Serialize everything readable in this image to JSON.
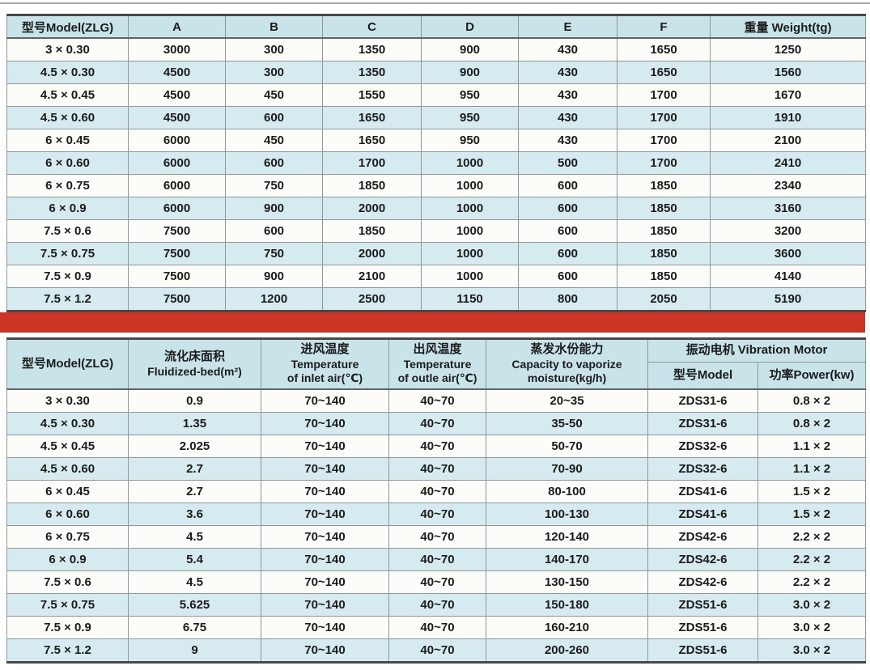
{
  "colors": {
    "header_bg": "#c8e4e9",
    "row_even_bg": "#d5ebef",
    "row_odd_bg": "#fcfcf8",
    "red_divider": "#cc3426",
    "border_dark": "#484848",
    "border_light": "#8f9898",
    "text": "#1b1b1b"
  },
  "table1": {
    "columns": [
      "型号Model(ZLG)",
      "A",
      "B",
      "C",
      "D",
      "E",
      "F",
      "重量 Weight(tg)"
    ],
    "rows": [
      [
        "3 × 0.30",
        "3000",
        "300",
        "1350",
        "900",
        "430",
        "1650",
        "1250"
      ],
      [
        "4.5 × 0.30",
        "4500",
        "300",
        "1350",
        "900",
        "430",
        "1650",
        "1560"
      ],
      [
        "4.5 × 0.45",
        "4500",
        "450",
        "1550",
        "950",
        "430",
        "1700",
        "1670"
      ],
      [
        "4.5 × 0.60",
        "4500",
        "600",
        "1650",
        "950",
        "430",
        "1700",
        "1910"
      ],
      [
        "6 × 0.45",
        "6000",
        "450",
        "1650",
        "950",
        "430",
        "1700",
        "2100"
      ],
      [
        "6 × 0.60",
        "6000",
        "600",
        "1700",
        "1000",
        "500",
        "1700",
        "2410"
      ],
      [
        "6 × 0.75",
        "6000",
        "750",
        "1850",
        "1000",
        "600",
        "1850",
        "2340"
      ],
      [
        "6 × 0.9",
        "6000",
        "900",
        "2000",
        "1000",
        "600",
        "1850",
        "3160"
      ],
      [
        "7.5 × 0.6",
        "7500",
        "600",
        "1850",
        "1000",
        "600",
        "1850",
        "3200"
      ],
      [
        "7.5 × 0.75",
        "7500",
        "750",
        "2000",
        "1000",
        "600",
        "1850",
        "3600"
      ],
      [
        "7.5 × 0.9",
        "7500",
        "900",
        "2100",
        "1000",
        "600",
        "1850",
        "4140"
      ],
      [
        "7.5 × 1.2",
        "7500",
        "1200",
        "2500",
        "1150",
        "800",
        "2050",
        "5190"
      ]
    ]
  },
  "table2": {
    "header": {
      "col_model": "型号Model(ZLG)",
      "col_fluidized": [
        "流化床面积",
        "Fluidized-bed(m²)"
      ],
      "col_inlet": [
        "进风温度",
        "Temperature",
        "of inlet air(℃)"
      ],
      "col_outlet": [
        "出风温度",
        "Temperature",
        "of outle air(℃)"
      ],
      "col_capacity": [
        "蒸发水份能力",
        "Capacity to vaporize",
        "moisture(kg/h)"
      ],
      "col_vibration": "振动电机 Vibration Motor",
      "col_vib_model": "型号Model",
      "col_vib_power": "功率Power(kw)"
    },
    "rows": [
      [
        "3 × 0.30",
        "0.9",
        "70~140",
        "40~70",
        "20~35",
        "ZDS31-6",
        "0.8 × 2"
      ],
      [
        "4.5 × 0.30",
        "1.35",
        "70~140",
        "40~70",
        "35-50",
        "ZDS31-6",
        "0.8 × 2"
      ],
      [
        "4.5 × 0.45",
        "2.025",
        "70~140",
        "40~70",
        "50-70",
        "ZDS32-6",
        "1.1 × 2"
      ],
      [
        "4.5 × 0.60",
        "2.7",
        "70~140",
        "40~70",
        "70-90",
        "ZDS32-6",
        "1.1 × 2"
      ],
      [
        "6 × 0.45",
        "2.7",
        "70~140",
        "40~70",
        "80-100",
        "ZDS41-6",
        "1.5 × 2"
      ],
      [
        "6 × 0.60",
        "3.6",
        "70~140",
        "40~70",
        "100-130",
        "ZDS41-6",
        "1.5 × 2"
      ],
      [
        "6 × 0.75",
        "4.5",
        "70~140",
        "40~70",
        "120-140",
        "ZDS42-6",
        "2.2 × 2"
      ],
      [
        "6 × 0.9",
        "5.4",
        "70~140",
        "40~70",
        "140-170",
        "ZDS42-6",
        "2.2 × 2"
      ],
      [
        "7.5 × 0.6",
        "4.5",
        "70~140",
        "40~70",
        "130-150",
        "ZDS42-6",
        "2.2 × 2"
      ],
      [
        "7.5 × 0.75",
        "5.625",
        "70~140",
        "40~70",
        "150-180",
        "ZDS51-6",
        "3.0 × 2"
      ],
      [
        "7.5 × 0.9",
        "6.75",
        "70~140",
        "40~70",
        "160-210",
        "ZDS51-6",
        "3.0 × 2"
      ],
      [
        "7.5 × 1.2",
        "9",
        "70~140",
        "40~70",
        "200-260",
        "ZDS51-6",
        "3.0 × 2"
      ]
    ]
  }
}
